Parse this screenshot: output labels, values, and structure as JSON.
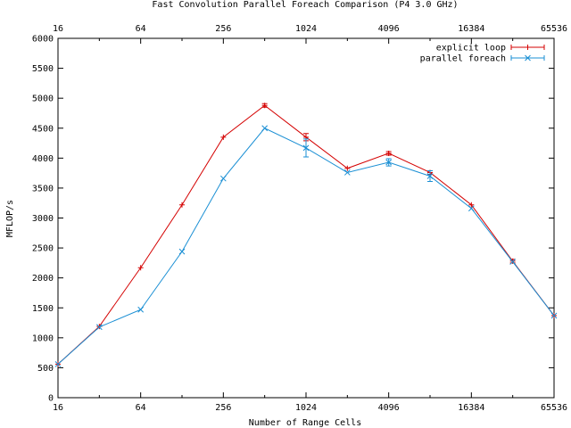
{
  "chart_data": {
    "type": "line",
    "title": "Fast Convolution Parallel Foreach Comparison (P4 3.0 GHz)",
    "xlabel": "Number of Range Cells",
    "ylabel": "MFLOP/s",
    "x_scale": "log2",
    "xlim": [
      16,
      65536
    ],
    "ylim": [
      0,
      6000
    ],
    "x_ticks": [
      "16",
      "64",
      "256",
      "1024",
      "4096",
      "16384",
      "65536"
    ],
    "x_tick_values": [
      16,
      64,
      256,
      1024,
      4096,
      16384,
      65536
    ],
    "y_ticks": [
      "0",
      "500",
      "1000",
      "1500",
      "2000",
      "2500",
      "3000",
      "3500",
      "4000",
      "4500",
      "5000",
      "5500",
      "6000"
    ],
    "y_tick_values": [
      0,
      500,
      1000,
      1500,
      2000,
      2500,
      3000,
      3500,
      4000,
      4500,
      5000,
      5500,
      6000
    ],
    "grid": false,
    "legend_position": "top-right",
    "x": [
      16,
      32,
      64,
      128,
      256,
      512,
      1024,
      2048,
      4096,
      8192,
      16384,
      32768,
      65536
    ],
    "series": [
      {
        "name": "explicit loop",
        "color": "#d40000",
        "marker": "plus",
        "values": [
          560,
          1190,
          2170,
          3220,
          4350,
          4880,
          4350,
          3830,
          4080,
          3760,
          3220,
          2280,
          1370
        ],
        "errors": [
          0,
          0,
          0,
          0,
          0,
          30,
          60,
          0,
          30,
          30,
          0,
          30,
          0
        ]
      },
      {
        "name": "parallel foreach",
        "color": "#1a8fd4",
        "marker": "cross",
        "values": [
          560,
          1180,
          1470,
          2440,
          3660,
          4500,
          4170,
          3760,
          3930,
          3700,
          3160,
          2270,
          1370
        ],
        "errors": [
          0,
          0,
          0,
          0,
          0,
          0,
          150,
          0,
          60,
          90,
          0,
          0,
          0
        ]
      }
    ]
  }
}
